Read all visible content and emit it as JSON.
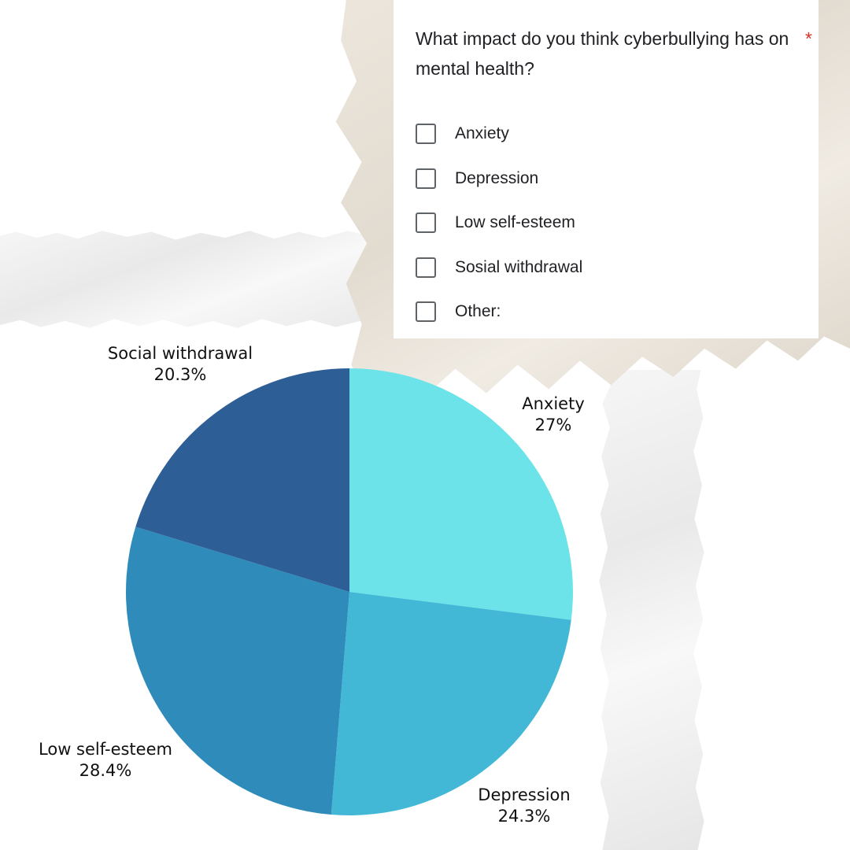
{
  "form": {
    "question": "What impact do you think cyberbullying has on mental health?",
    "required_mark": "*",
    "options": [
      {
        "label": "Anxiety"
      },
      {
        "label": "Depression"
      },
      {
        "label": "Low self-esteem"
      },
      {
        "label": "Sosial withdrawal"
      },
      {
        "label": "Other:"
      }
    ]
  },
  "chart_data": {
    "type": "pie",
    "title": "",
    "start_angle_deg": 0,
    "direction": "clockwise",
    "slices": [
      {
        "label": "Anxiety",
        "value": 27,
        "value_label": "27%",
        "color": "#6be3e8"
      },
      {
        "label": "Depression",
        "value": 24.3,
        "value_label": "24.3%",
        "color": "#42b8d6"
      },
      {
        "label": "Low self-esteem",
        "value": 28.4,
        "value_label": "28.4%",
        "color": "#2e8bba"
      },
      {
        "label": "Social withdrawal",
        "value": 20.3,
        "value_label": "20.3%",
        "color": "#2e5e96"
      }
    ]
  }
}
